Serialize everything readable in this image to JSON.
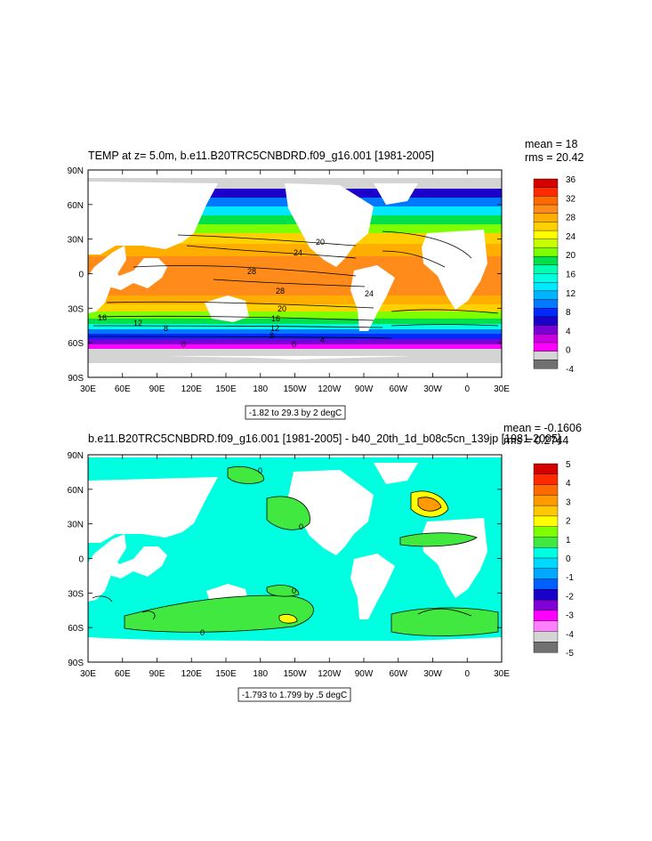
{
  "panel_top": {
    "title": "TEMP at z=   5.0m, b.e11.B20TRC5CNBDRD.f09_g16.001 [1981-2005]",
    "mean": "mean = 18",
    "rms": "rms = 20.42",
    "contour_info": "-1.82 to 29.3 by 2 degC",
    "lat_ticks": [
      "90N",
      "60N",
      "30N",
      "0",
      "30S",
      "60S",
      "90S"
    ],
    "lon_ticks": [
      "30E",
      "60E",
      "90E",
      "120E",
      "150E",
      "180",
      "150W",
      "120W",
      "90W",
      "60W",
      "30W",
      "0",
      "30E"
    ],
    "colorbar_labels": [
      "36",
      "32",
      "28",
      "24",
      "20",
      "16",
      "12",
      "8",
      "4",
      "0",
      "-4"
    ],
    "colorbar_colors": [
      "#d40000",
      "#ff2a00",
      "#ff6a00",
      "#ff8c1a",
      "#ffae00",
      "#ffd000",
      "#ffff00",
      "#c8ff00",
      "#7dff00",
      "#00e04a",
      "#00ffb0",
      "#00ffe0",
      "#00e8ff",
      "#00b4ff",
      "#0078ff",
      "#0028ff",
      "#1a00c8",
      "#7a00d8",
      "#c800e0",
      "#ff00ff",
      "#d4d4d4",
      "#707070"
    ],
    "contour_labels": [
      "20",
      "24",
      "28",
      "28",
      "24",
      "20",
      "16",
      "12",
      "8",
      "0",
      "0",
      "16",
      "12",
      "8",
      "4"
    ]
  },
  "panel_bottom": {
    "title": "b.e11.B20TRC5CNBDRD.f09_g16.001 [1981-2005] - b40_20th_1d_b08c5cn_139jp [1981-2005]",
    "mean": "mean = -0.1606",
    "rms": "rms = 0.2744",
    "contour_info": "-1.793 to 1.799 by .5 degC",
    "lat_ticks": [
      "90N",
      "60N",
      "30N",
      "0",
      "30S",
      "60S",
      "90S"
    ],
    "lon_ticks": [
      "30E",
      "60E",
      "90E",
      "120E",
      "150E",
      "180",
      "150W",
      "120W",
      "90W",
      "60W",
      "30W",
      "0",
      "30E"
    ],
    "colorbar_labels": [
      "5",
      "4",
      "3",
      "2",
      "1",
      "0",
      "-1",
      "-2",
      "-3",
      "-4",
      "-5"
    ],
    "colorbar_colors": [
      "#d40000",
      "#ff2a00",
      "#ff6a00",
      "#ff9a00",
      "#ffc800",
      "#ffff00",
      "#7dff00",
      "#40e840",
      "#00ffe0",
      "#00d8ff",
      "#00a8ff",
      "#0060ff",
      "#1a00c8",
      "#8000d8",
      "#ff00ff",
      "#ff80ff",
      "#d4d4d4",
      "#707070"
    ],
    "contour_labels": [
      "0",
      "0",
      "0",
      "0"
    ]
  }
}
